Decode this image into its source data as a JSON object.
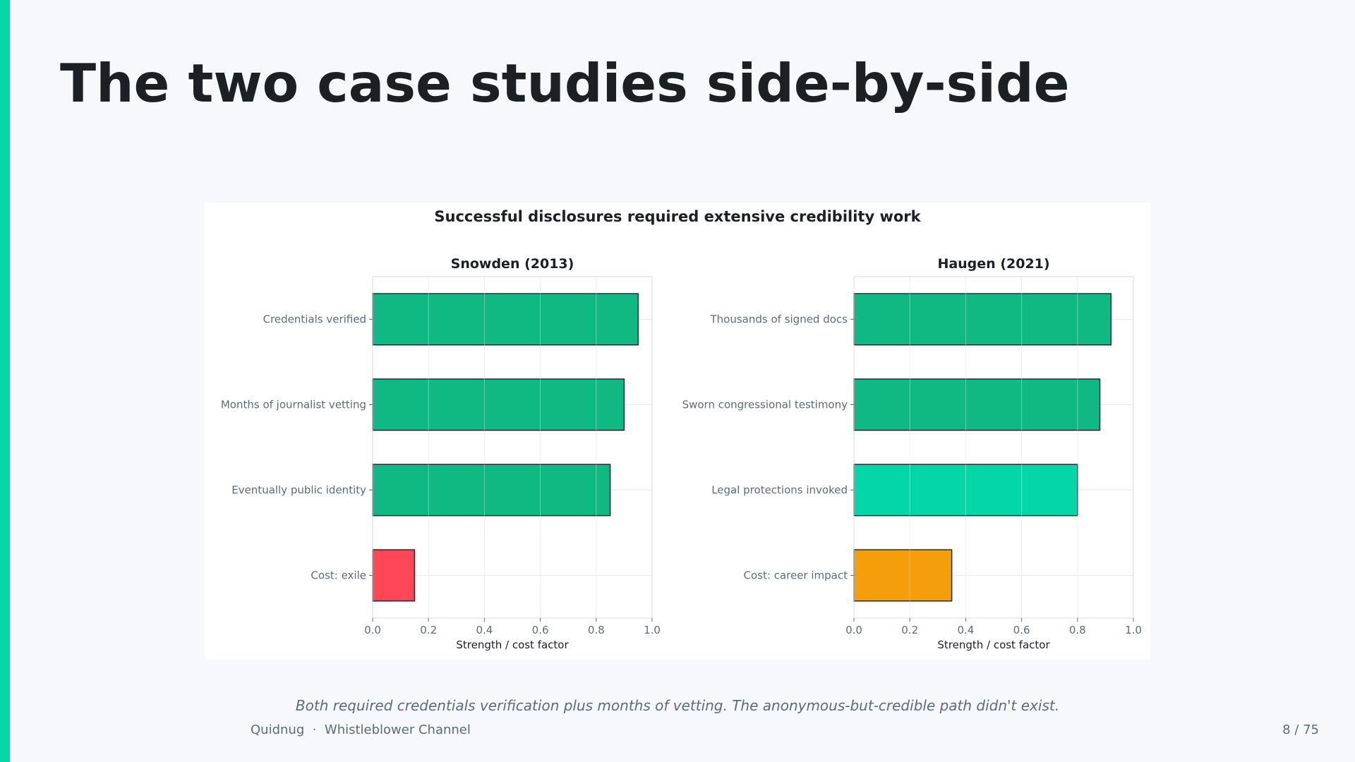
{
  "slide": {
    "title": "The two case studies side-by-side",
    "caption": "Both required credentials verification plus months of vetting. The anonymous-but-credible path didn't exist.",
    "footer": {
      "brand": "Quidnug",
      "separator": "·",
      "channel": "Whistleblower Channel",
      "page": "8 / 75"
    },
    "accent_color": "#05d6a8"
  },
  "figure": {
    "suptitle": "Successful disclosures required extensive credibility work"
  },
  "chart_data": [
    {
      "type": "bar",
      "orientation": "horizontal",
      "title": "Snowden (2013)",
      "xlabel": "Strength / cost factor",
      "ylabel": "",
      "xlim": [
        0,
        1
      ],
      "xticks": [
        "0.0",
        "0.2",
        "0.4",
        "0.6",
        "0.8",
        "1.0"
      ],
      "grid": true,
      "categories": [
        "Credentials verified",
        "Months of journalist vetting",
        "Eventually public identity",
        "Cost: exile"
      ],
      "values": [
        0.95,
        0.9,
        0.85,
        0.15
      ],
      "colors": [
        "#10b981",
        "#10b981",
        "#10b981",
        "#ff4757"
      ]
    },
    {
      "type": "bar",
      "orientation": "horizontal",
      "title": "Haugen (2021)",
      "xlabel": "Strength / cost factor",
      "ylabel": "",
      "xlim": [
        0,
        1
      ],
      "xticks": [
        "0.0",
        "0.2",
        "0.4",
        "0.6",
        "0.8",
        "1.0"
      ],
      "grid": true,
      "categories": [
        "Thousands of signed docs",
        "Sworn congressional testimony",
        "Legal protections invoked",
        "Cost: career impact"
      ],
      "values": [
        0.92,
        0.88,
        0.8,
        0.35
      ],
      "colors": [
        "#10b981",
        "#10b981",
        "#05d6a8",
        "#f59e0b"
      ]
    }
  ]
}
